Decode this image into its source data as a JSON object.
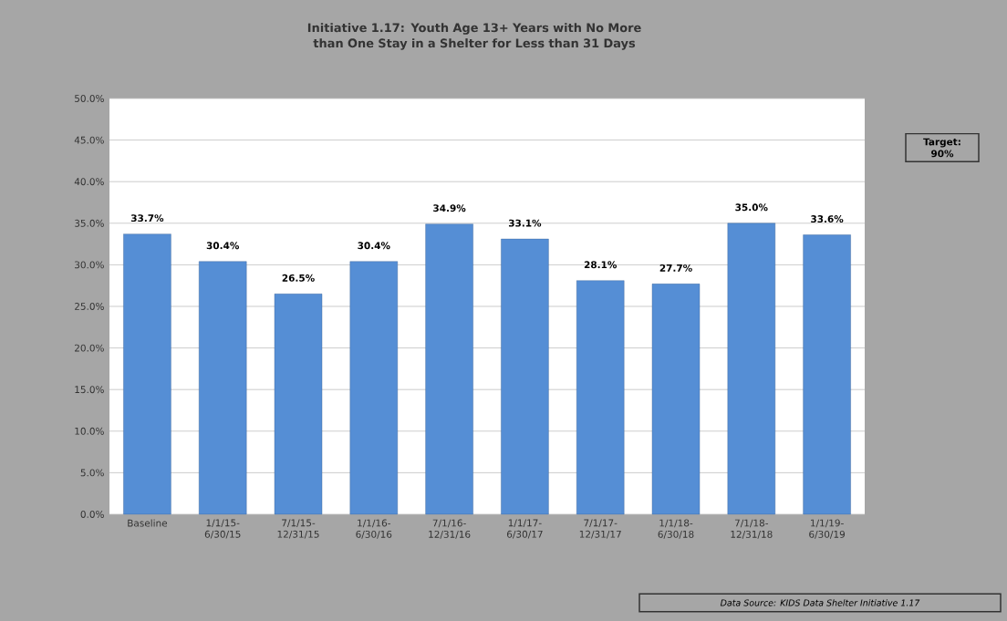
{
  "chart_data": {
    "type": "bar",
    "title": "Initiative 1.17: Youth Age 13+ Years with No More than One Stay in a Shelter for Less than 31 Days",
    "categories": [
      "Baseline",
      "1/1/15-6/30/15",
      "7/1/15-12/31/15",
      "1/1/16-6/30/16",
      "7/1/16-12/31/16",
      "1/1/17-6/30/17",
      "7/1/17-12/31/17",
      "1/1/18-6/30/18",
      "7/1/18-12/31/18",
      "1/1/19-6/30/19"
    ],
    "values": [
      33.7,
      30.4,
      26.5,
      30.4,
      34.9,
      33.1,
      28.1,
      27.7,
      35.0,
      33.6
    ],
    "value_labels": [
      "33.7%",
      "30.4%",
      "26.5%",
      "30.4%",
      "34.9%",
      "33.1%",
      "28.1%",
      "27.7%",
      "35.0%",
      "33.6%"
    ],
    "color": "#558ed5",
    "ylim": [
      0,
      50
    ],
    "yticks": [
      {
        "value": 0,
        "label": "0.0%"
      },
      {
        "value": 5,
        "label": "5.0%"
      },
      {
        "value": 10,
        "label": "10.0%"
      },
      {
        "value": 15,
        "label": "15.0%"
      },
      {
        "value": 20,
        "label": "20.0%"
      },
      {
        "value": 25,
        "label": "25.0%"
      },
      {
        "value": 30,
        "label": "30.0%"
      },
      {
        "value": 35,
        "label": "35.0%"
      },
      {
        "value": 40,
        "label": "40.0%"
      },
      {
        "value": 45,
        "label": "45.0%"
      },
      {
        "value": 50,
        "label": "50.0%"
      }
    ],
    "grid": "y",
    "annotations": [
      "Target: 90%",
      "Data Source: KIDS Data Shelter Initiative 1.17"
    ]
  }
}
